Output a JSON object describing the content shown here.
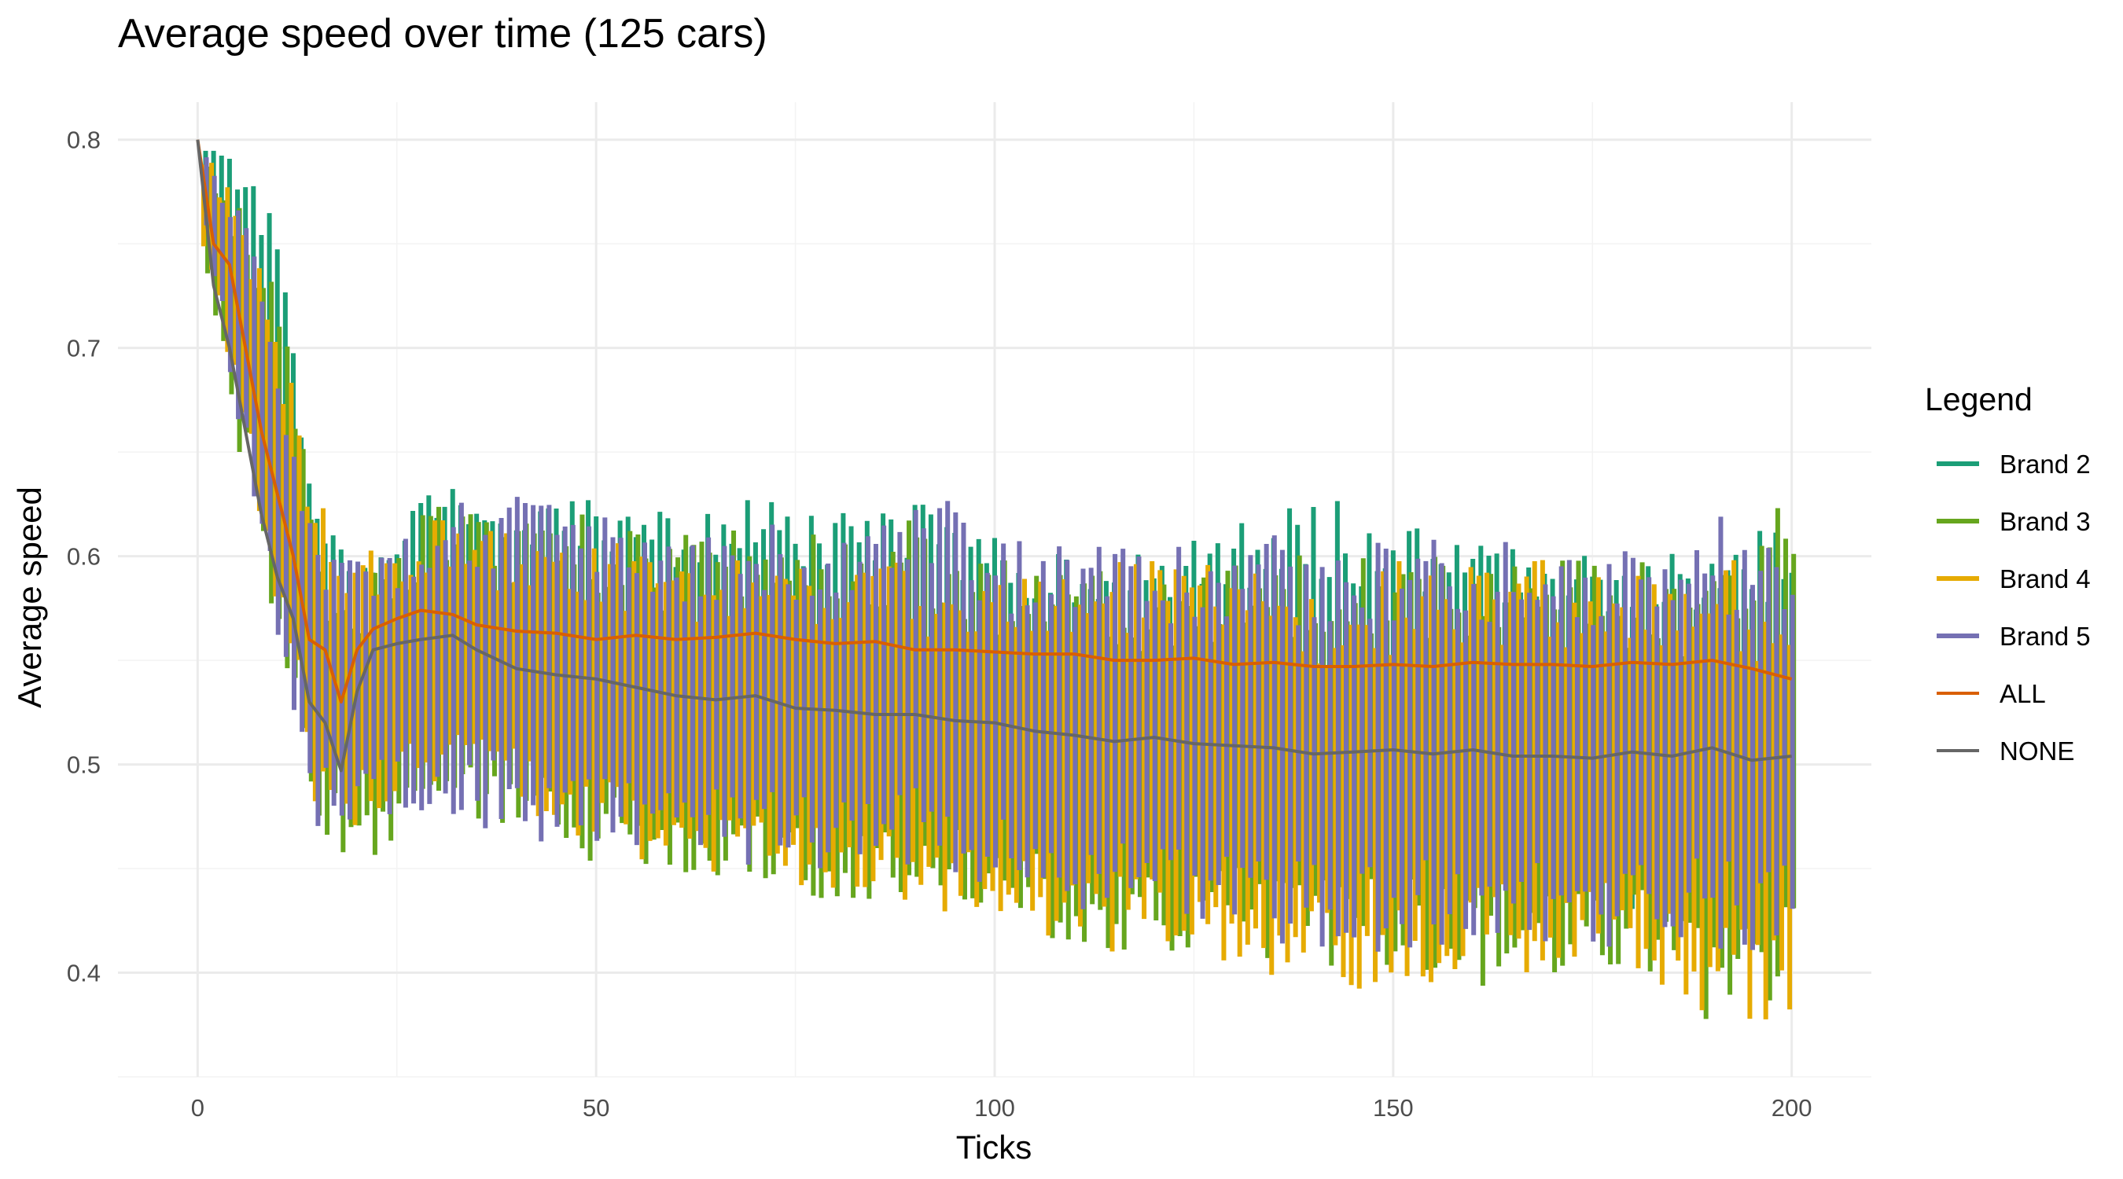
{
  "chart_data": {
    "type": "line",
    "title": "Average speed over time (125 cars)",
    "xlabel": "Ticks",
    "ylabel": "Average speed",
    "xlim": [
      -10,
      210
    ],
    "ylim": [
      0.35,
      0.818
    ],
    "x_ticks": [
      0,
      50,
      100,
      150,
      200
    ],
    "y_ticks": [
      0.4,
      0.5,
      0.6,
      0.7,
      0.8
    ],
    "x_tick_labels": [
      "0",
      "50",
      "100",
      "150",
      "200"
    ],
    "y_tick_labels": [
      "0.4",
      "0.5",
      "0.6",
      "0.7",
      "0.8"
    ],
    "grid": true,
    "legend_title": "Legend",
    "legend_position": "right",
    "series": [
      {
        "name": "Brand 2",
        "color": "#1b9e77",
        "style": "oscillating"
      },
      {
        "name": "Brand 3",
        "color": "#66a61e",
        "style": "oscillating"
      },
      {
        "name": "Brand 4",
        "color": "#e6ab02",
        "style": "oscillating"
      },
      {
        "name": "Brand 5",
        "color": "#7570b3",
        "style": "oscillating"
      },
      {
        "name": "ALL",
        "color": "#d95f02",
        "style": "line"
      },
      {
        "name": "NONE",
        "color": "#666666",
        "style": "line"
      }
    ],
    "envelopes": [
      {
        "name": "Brand 2",
        "x": [
          0,
          5,
          10,
          15,
          20,
          30,
          40,
          50,
          60,
          70,
          80,
          90,
          100,
          110,
          120,
          130,
          140,
          150,
          160,
          170,
          180,
          190,
          200
        ],
        "high": [
          0.8,
          0.79,
          0.76,
          0.62,
          0.6,
          0.64,
          0.62,
          0.63,
          0.62,
          0.63,
          0.62,
          0.63,
          0.61,
          0.61,
          0.6,
          0.62,
          0.63,
          0.62,
          0.61,
          0.61,
          0.61,
          0.61,
          0.62
        ],
        "low": [
          0.78,
          0.72,
          0.62,
          0.52,
          0.52,
          0.53,
          0.53,
          0.51,
          0.5,
          0.49,
          0.48,
          0.47,
          0.47,
          0.46,
          0.46,
          0.45,
          0.45,
          0.45,
          0.44,
          0.44,
          0.43,
          0.43,
          0.43
        ]
      },
      {
        "name": "Brand 3",
        "x": [
          0,
          5,
          10,
          15,
          20,
          30,
          40,
          50,
          60,
          70,
          80,
          90,
          100,
          110,
          120,
          130,
          140,
          150,
          160,
          170,
          180,
          190,
          200
        ],
        "high": [
          0.8,
          0.77,
          0.73,
          0.6,
          0.59,
          0.63,
          0.62,
          0.62,
          0.61,
          0.62,
          0.61,
          0.62,
          0.6,
          0.61,
          0.59,
          0.6,
          0.61,
          0.61,
          0.6,
          0.6,
          0.6,
          0.6,
          0.63
        ],
        "low": [
          0.75,
          0.65,
          0.55,
          0.46,
          0.45,
          0.47,
          0.46,
          0.45,
          0.44,
          0.44,
          0.43,
          0.43,
          0.43,
          0.41,
          0.41,
          0.41,
          0.4,
          0.4,
          0.39,
          0.4,
          0.4,
          0.37,
          0.39
        ]
      },
      {
        "name": "Brand 4",
        "x": [
          0,
          5,
          10,
          15,
          20,
          30,
          40,
          50,
          60,
          70,
          80,
          90,
          100,
          110,
          120,
          130,
          140,
          150,
          160,
          170,
          180,
          190,
          200
        ],
        "high": [
          0.8,
          0.78,
          0.72,
          0.63,
          0.6,
          0.62,
          0.61,
          0.61,
          0.6,
          0.6,
          0.6,
          0.6,
          0.59,
          0.6,
          0.6,
          0.6,
          0.59,
          0.6,
          0.6,
          0.6,
          0.59,
          0.6,
          0.6
        ],
        "low": [
          0.76,
          0.68,
          0.58,
          0.48,
          0.47,
          0.49,
          0.48,
          0.46,
          0.45,
          0.44,
          0.44,
          0.43,
          0.42,
          0.41,
          0.41,
          0.4,
          0.39,
          0.38,
          0.4,
          0.4,
          0.4,
          0.38,
          0.37
        ]
      },
      {
        "name": "Brand 5",
        "x": [
          0,
          5,
          10,
          15,
          20,
          30,
          40,
          50,
          60,
          70,
          80,
          90,
          100,
          110,
          120,
          130,
          140,
          150,
          160,
          170,
          180,
          190,
          200
        ],
        "high": [
          0.8,
          0.77,
          0.71,
          0.61,
          0.6,
          0.63,
          0.63,
          0.62,
          0.61,
          0.62,
          0.61,
          0.64,
          0.61,
          0.61,
          0.61,
          0.61,
          0.61,
          0.61,
          0.61,
          0.61,
          0.61,
          0.62,
          0.61
        ],
        "low": [
          0.78,
          0.66,
          0.56,
          0.47,
          0.47,
          0.48,
          0.46,
          0.46,
          0.46,
          0.45,
          0.45,
          0.45,
          0.44,
          0.43,
          0.42,
          0.42,
          0.41,
          0.41,
          0.41,
          0.41,
          0.41,
          0.41,
          0.41
        ]
      }
    ],
    "lines": [
      {
        "name": "ALL",
        "x": [
          0,
          2,
          4,
          6,
          8,
          10,
          12,
          14,
          16,
          18,
          20,
          22,
          25,
          28,
          32,
          35,
          40,
          45,
          50,
          55,
          60,
          65,
          70,
          75,
          80,
          85,
          90,
          95,
          100,
          105,
          110,
          115,
          120,
          125,
          130,
          135,
          140,
          145,
          150,
          155,
          160,
          165,
          170,
          175,
          180,
          185,
          190,
          195,
          200
        ],
        "y": [
          0.8,
          0.75,
          0.74,
          0.7,
          0.66,
          0.63,
          0.6,
          0.56,
          0.555,
          0.53,
          0.555,
          0.565,
          0.57,
          0.574,
          0.572,
          0.567,
          0.564,
          0.563,
          0.56,
          0.562,
          0.56,
          0.561,
          0.563,
          0.56,
          0.558,
          0.559,
          0.555,
          0.555,
          0.554,
          0.553,
          0.553,
          0.55,
          0.55,
          0.551,
          0.548,
          0.549,
          0.547,
          0.547,
          0.548,
          0.547,
          0.549,
          0.548,
          0.548,
          0.547,
          0.549,
          0.548,
          0.55,
          0.546,
          0.541
        ]
      },
      {
        "name": "NONE",
        "x": [
          0,
          2,
          4,
          6,
          8,
          10,
          12,
          14,
          16,
          18,
          20,
          22,
          25,
          28,
          32,
          35,
          40,
          45,
          50,
          55,
          60,
          65,
          70,
          75,
          80,
          85,
          90,
          95,
          100,
          105,
          110,
          115,
          120,
          125,
          130,
          135,
          140,
          145,
          150,
          155,
          160,
          165,
          170,
          175,
          180,
          185,
          190,
          195,
          200
        ],
        "y": [
          0.8,
          0.73,
          0.7,
          0.66,
          0.62,
          0.59,
          0.57,
          0.53,
          0.52,
          0.497,
          0.535,
          0.555,
          0.558,
          0.56,
          0.562,
          0.555,
          0.546,
          0.543,
          0.541,
          0.537,
          0.533,
          0.531,
          0.533,
          0.527,
          0.526,
          0.524,
          0.524,
          0.521,
          0.52,
          0.516,
          0.514,
          0.511,
          0.513,
          0.51,
          0.509,
          0.508,
          0.505,
          0.506,
          0.507,
          0.505,
          0.507,
          0.504,
          0.504,
          0.503,
          0.506,
          0.504,
          0.508,
          0.502,
          0.504
        ]
      }
    ]
  }
}
